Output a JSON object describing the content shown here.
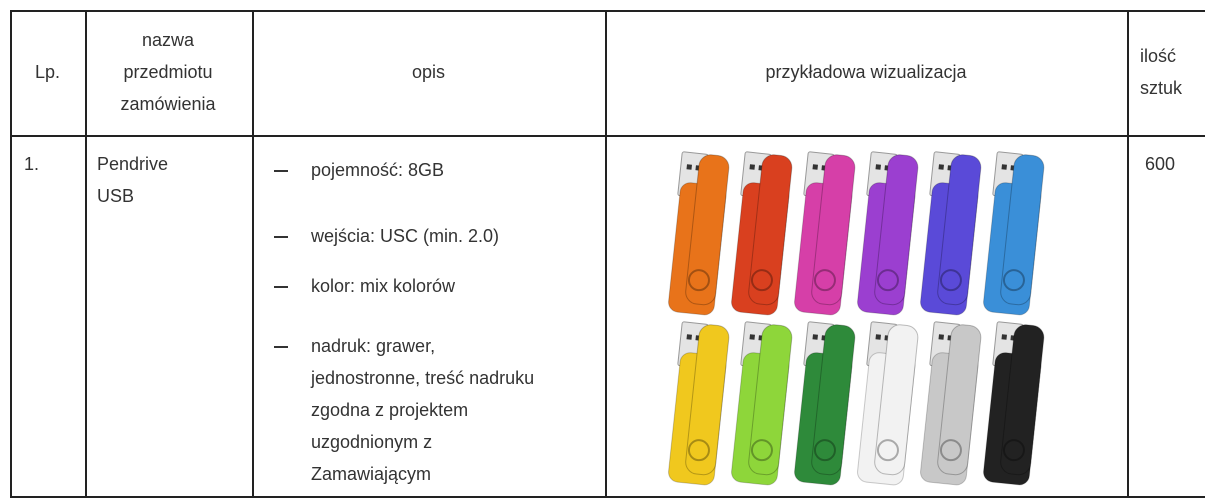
{
  "table": {
    "header": [
      "Lp.",
      "nazwa przedmiotu zamówienia",
      "opis",
      "przykładowa wizualizacja",
      "ilość sztuk"
    ],
    "rows": [
      {
        "lp": "1.",
        "name": "Pendrive USB",
        "description": [
          "pojemność: 8GB",
          "wejścia: USC (min. 2.0)",
          "kolor: mix kolorów",
          "nadruk: grawer, jednostronne, treść nadruku zgodna z projektem uzgodnionym z Zamawiającym"
        ],
        "quantity": "600"
      }
    ]
  }
}
